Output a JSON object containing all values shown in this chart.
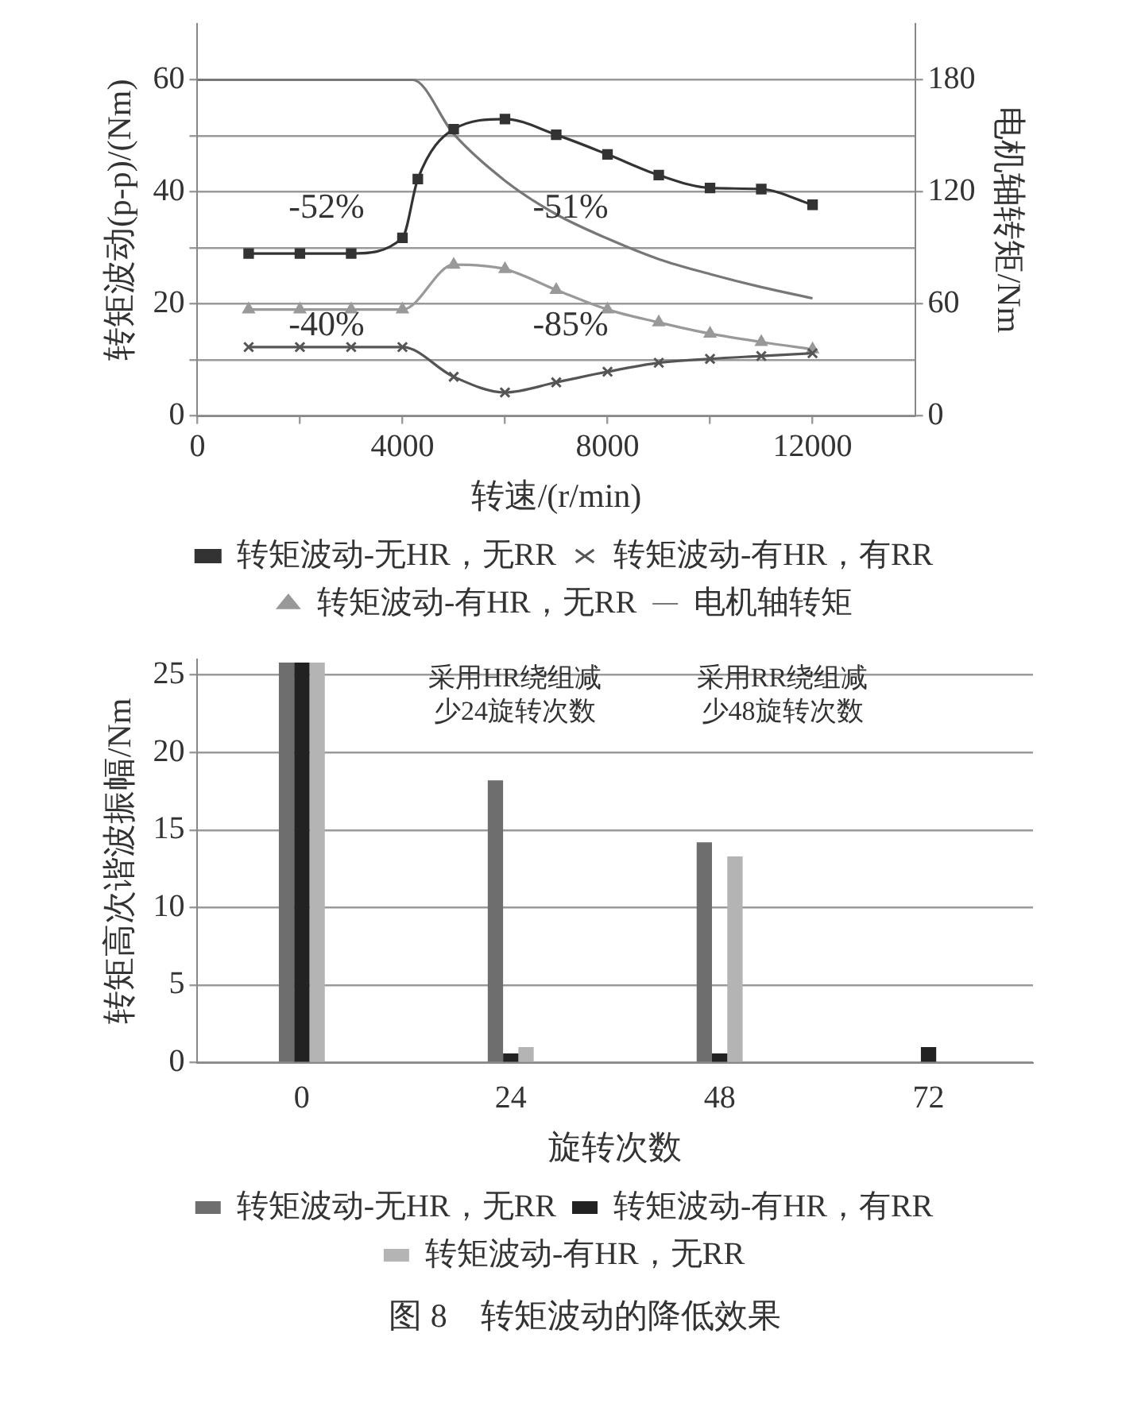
{
  "chart_data": [
    {
      "type": "line",
      "xlabel": "转速/(r/min)",
      "ylabel": "转矩波动(p-p)/(Nm)",
      "y2label": "电机轴转矩/Nm",
      "xlim": [
        0,
        14000
      ],
      "xticks": [
        0,
        {
          "value": 2000,
          "label": null
        },
        4000,
        {
          "value": 6000,
          "label": null
        },
        8000,
        {
          "value": 10000,
          "label": null
        },
        12000
      ],
      "ylim": [
        0,
        70
      ],
      "yticks": [
        0,
        {
          "value": 10,
          "label": null
        },
        20,
        {
          "value": 30,
          "label": null
        },
        40,
        {
          "value": 50,
          "label": null
        },
        60
      ],
      "y2lim": [
        0,
        210
      ],
      "y2ticks": [
        0,
        60,
        120,
        180
      ],
      "grid": "y",
      "legend": "bottom",
      "series": [
        {
          "name": "转矩波动-无HR，无RR",
          "color": "#333333",
          "marker": "square",
          "x": [
            1000,
            2000,
            3000,
            4000,
            4300,
            5000,
            6000,
            7000,
            8000,
            9000,
            10000,
            11000,
            12000
          ],
          "values": [
            29,
            29,
            29,
            31.8,
            42.3,
            51.2,
            53,
            50.2,
            46.7,
            43,
            40.7,
            40.5,
            37.7
          ]
        },
        {
          "name": "转矩波动-有HR，有RR",
          "color": "#555555",
          "marker": "cross",
          "x": [
            1000,
            2000,
            3000,
            4000,
            5000,
            6000,
            7000,
            8000,
            9000,
            10000,
            11000,
            12000
          ],
          "values": [
            12.3,
            12.3,
            12.3,
            12.3,
            7,
            4.2,
            6,
            7.9,
            9.5,
            10.2,
            10.7,
            11.2
          ]
        },
        {
          "name": "转矩波动-有HR，无RR",
          "color": "#999999",
          "marker": "triangle",
          "x": [
            1000,
            2000,
            3000,
            4000,
            5000,
            6000,
            7000,
            8000,
            9000,
            10000,
            11000,
            12000
          ],
          "values": [
            19,
            19,
            19,
            19,
            27,
            26.2,
            22.5,
            19,
            16.7,
            14.7,
            13.2,
            11.9
          ]
        },
        {
          "name": "电机轴转矩",
          "color": "#777777",
          "marker": "none",
          "axis": "y2",
          "x": [
            0,
            4200,
            5000,
            6000,
            7000,
            8000,
            9000,
            10000,
            11000,
            12000
          ],
          "values": [
            180,
            180,
            151,
            126,
            108,
            95,
            84,
            76,
            69,
            63
          ]
        }
      ],
      "annotations": [
        "-52%",
        "-51%",
        "-40%",
        "-85%"
      ]
    },
    {
      "type": "bar",
      "title": "图 8　转矩波动的降低效果",
      "xlabel": "旋转次数",
      "ylabel": "转矩高次谐波振幅/Nm",
      "categories": [
        "0",
        "24",
        "48",
        "72"
      ],
      "ylim": [
        0,
        26
      ],
      "yticks": [
        0,
        5,
        10,
        15,
        20,
        25
      ],
      "grid": "y",
      "legend": "bottom",
      "series": [
        {
          "name": "转矩波动-无HR，无RR",
          "color": "#6e6e6e",
          "values": [
            25.8,
            18.2,
            14.2,
            0
          ]
        },
        {
          "name": "转矩波动-有HR，有RR",
          "color": "#222222",
          "values": [
            25.8,
            0.6,
            0.6,
            1.0
          ]
        },
        {
          "name": "转矩波动-有HR，无RR",
          "color": "#b4b4b4",
          "values": [
            25.8,
            1.0,
            13.3,
            0
          ]
        }
      ],
      "annotations": [
        "采用HR绕组减少24旋转次数",
        "采用RR绕组减少48旋转次数"
      ]
    }
  ]
}
